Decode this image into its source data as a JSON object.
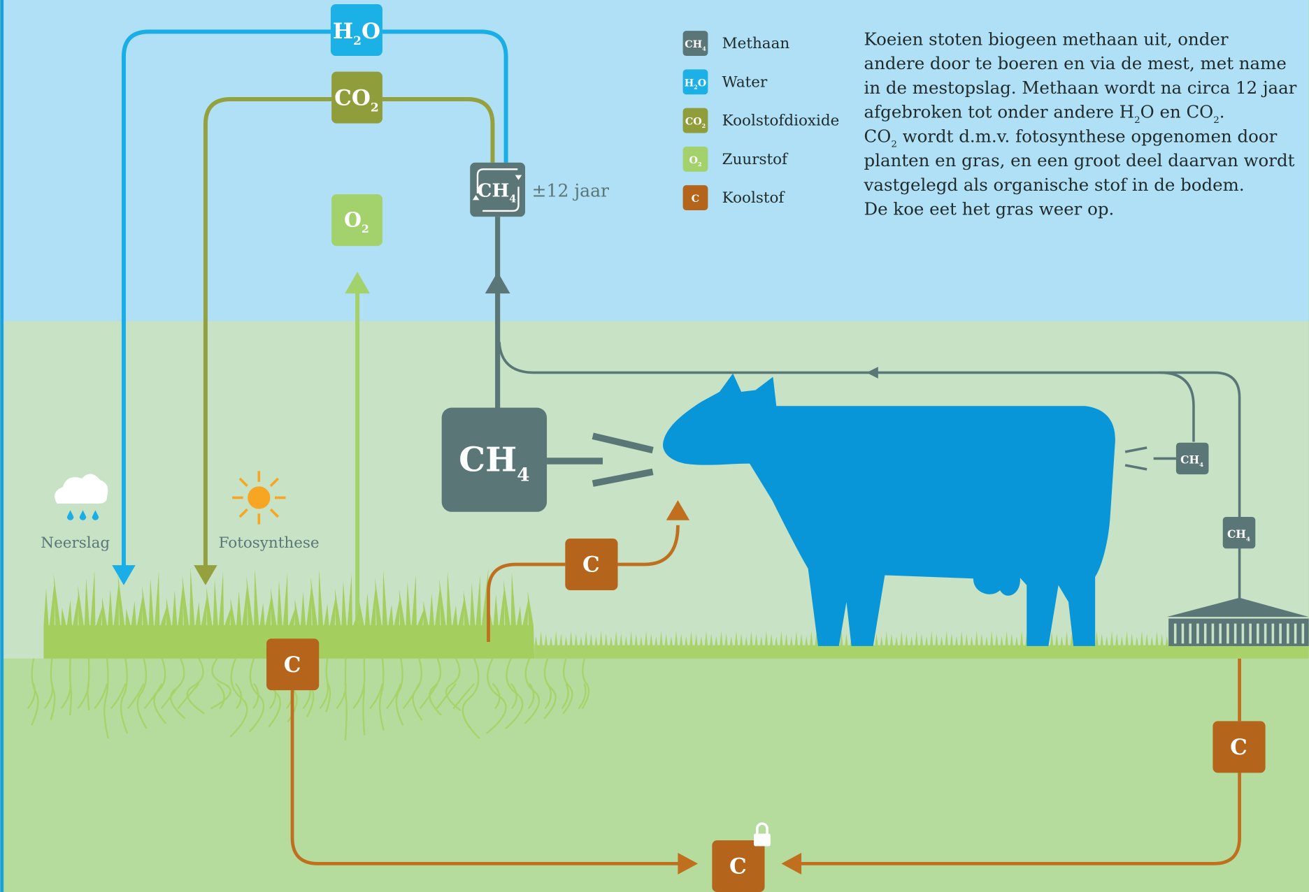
{
  "boxes": {
    "water": [
      "H",
      "2",
      "O"
    ],
    "co2": [
      "CO",
      "2"
    ],
    "o2": [
      "O",
      "2"
    ],
    "ch4_air": [
      "CH",
      "4"
    ],
    "ch4_cow": [
      "CH",
      "4"
    ],
    "ch4_rear": [
      "CH",
      "4"
    ],
    "ch4_storage": [
      "CH",
      "4"
    ],
    "c_feed": [
      "C"
    ],
    "c_roots": [
      "C"
    ],
    "c_manure": [
      "C"
    ],
    "c_soil": [
      "C"
    ]
  },
  "duration": "±12 jaar",
  "icons": {
    "rain": "Neerslag",
    "sun": "Fotosynthese"
  },
  "legend": [
    {
      "icon": [
        "CH",
        "4"
      ],
      "label": "Methaan"
    },
    {
      "icon": [
        "H",
        "2",
        "O"
      ],
      "label": "Water"
    },
    {
      "icon": [
        "CO",
        "2"
      ],
      "label": "Koolstofdioxide"
    },
    {
      "icon": [
        "O",
        "2"
      ],
      "label": "Zuurstof"
    },
    {
      "icon": [
        "C"
      ],
      "label": "Koolstof"
    }
  ],
  "description": [
    [
      "Koeien stoten biogeen methaan uit, onder"
    ],
    [
      "andere door te boeren en via de mest, met name"
    ],
    [
      "in de mestopslag. Methaan wordt na circa 12 jaar"
    ],
    [
      "afgebroken tot onder andere H",
      "2",
      "O en CO",
      "2",
      "."
    ],
    [
      "CO",
      "2",
      " wordt d.m.v. fotosynthese opgenomen door"
    ],
    [
      "planten en gras, en een groot deel daarvan wordt"
    ],
    [
      "vastgelegd als organische stof in de bodem."
    ],
    [
      "De koe eet het gras weer op."
    ]
  ]
}
